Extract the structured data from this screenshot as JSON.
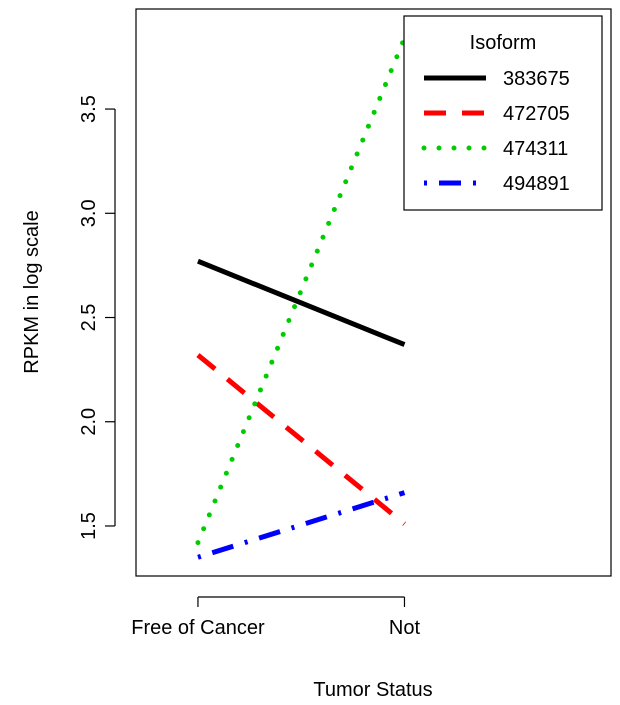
{
  "chart_data": {
    "type": "line",
    "title": "",
    "xlabel": "Tumor Status",
    "ylabel": "RPKM in log scale",
    "categories": [
      "Free of Cancer",
      "Not"
    ],
    "x_positions": [
      1,
      2
    ],
    "xlim": [
      0.7,
      3.0
    ],
    "ylim": [
      1.26,
      3.98
    ],
    "yticks": [
      1.5,
      2.0,
      2.5,
      3.0,
      3.5
    ],
    "ytick_labels": [
      "1.5",
      "2.0",
      "2.5",
      "3.0",
      "3.5"
    ],
    "grid": false,
    "legend": {
      "title": "Isoform",
      "position": "top-right"
    },
    "series": [
      {
        "name": "383675",
        "values": [
          2.77,
          2.37
        ],
        "color": "#000000",
        "line_style": "solid"
      },
      {
        "name": "472705",
        "values": [
          2.32,
          1.51
        ],
        "color": "#ff0000",
        "line_style": "dashed"
      },
      {
        "name": "474311",
        "values": [
          1.42,
          3.84
        ],
        "color": "#00cd00",
        "line_style": "dotted"
      },
      {
        "name": "494891",
        "values": [
          1.35,
          1.66
        ],
        "color": "#0000ff",
        "line_style": "dotdash"
      }
    ]
  }
}
